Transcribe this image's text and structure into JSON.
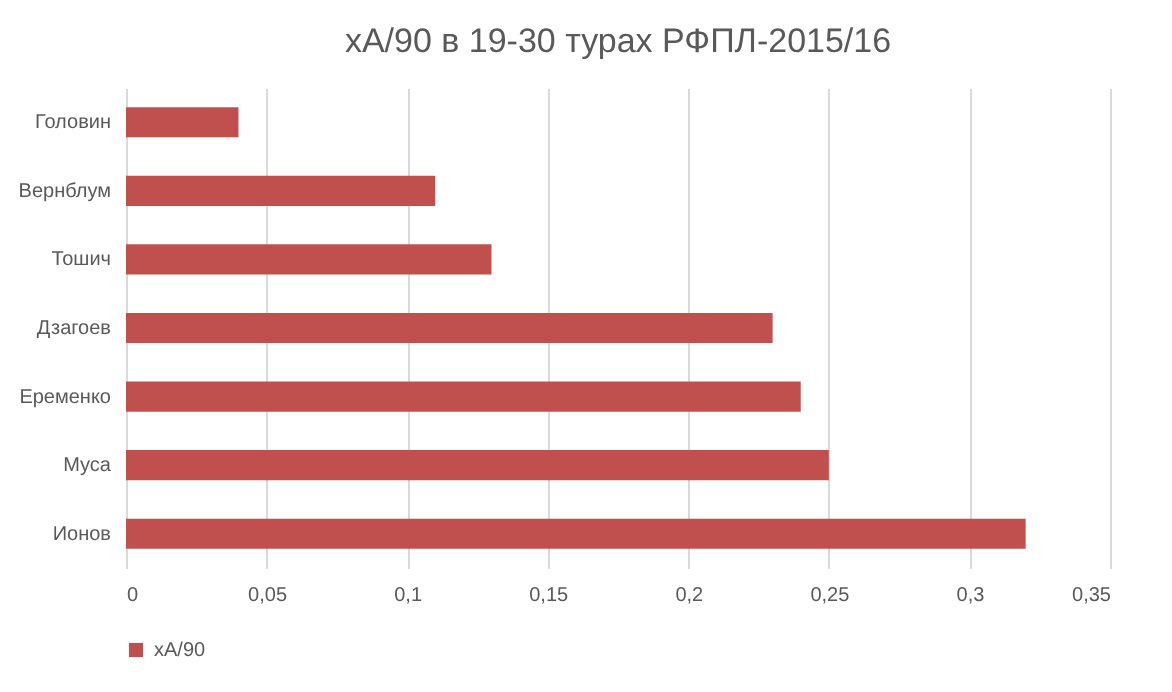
{
  "chart_data": {
    "type": "bar",
    "orientation": "horizontal",
    "title": "xA/90 в 19-30 турах РФПЛ-2015/16",
    "categories": [
      "Головин",
      "Вернблум",
      "Тошич",
      "Дзагоев",
      "Еременко",
      "Муса",
      "Ионов"
    ],
    "series": [
      {
        "name": "xA/90",
        "color": "#c0504d",
        "values": [
          0.04,
          0.11,
          0.13,
          0.23,
          0.24,
          0.25,
          0.32
        ]
      }
    ],
    "xlim": [
      0,
      0.35
    ],
    "xticks": [
      0,
      {
        "value": 0.05,
        "label": "0,05"
      },
      {
        "value": 0.1,
        "label": "0,1"
      },
      {
        "value": 0.15,
        "label": "0,15"
      },
      {
        "value": 0.2,
        "label": "0,2"
      },
      {
        "value": 0.25,
        "label": "0,25"
      },
      {
        "value": 0.3,
        "label": "0,3"
      },
      {
        "value": 0.35,
        "label": "0,35"
      }
    ],
    "grid": "x",
    "legend": "bottom"
  }
}
